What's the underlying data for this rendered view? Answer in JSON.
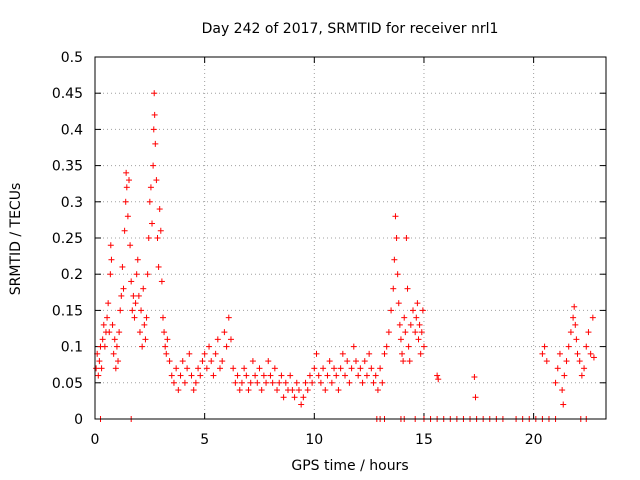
{
  "chart_data": {
    "type": "scatter",
    "title": "Day 242 of 2017, SRMTID for receiver nrl1",
    "xlabel": "GPS time / hours",
    "ylabel": "SRMTID / TECUs",
    "xlim": [
      0,
      23.3
    ],
    "ylim": [
      0,
      0.5
    ],
    "xticks": [
      0,
      5,
      10,
      15,
      20
    ],
    "yticks": [
      0,
      0.05,
      0.1,
      0.15,
      0.2,
      0.25,
      0.3,
      0.35,
      0.4,
      0.45,
      0.5
    ],
    "xtick_labels": [
      "0",
      "5",
      "10",
      "15",
      "20"
    ],
    "ytick_labels": [
      "0",
      "0.05",
      "0.1",
      "0.15",
      "0.2",
      "0.25",
      "0.3",
      "0.35",
      "0.4",
      "0.45",
      "0.5"
    ],
    "grid": true,
    "marker": "+",
    "color": "#ff0000",
    "series": [
      {
        "name": "",
        "points": [
          [
            0.05,
            0.07
          ],
          [
            0.1,
            0.09
          ],
          [
            0.15,
            0.06
          ],
          [
            0.2,
            0.08
          ],
          [
            0.25,
            0.1
          ],
          [
            0.3,
            0.07
          ],
          [
            0.35,
            0.11
          ],
          [
            0.4,
            0.13
          ],
          [
            0.45,
            0.1
          ],
          [
            0.5,
            0.12
          ],
          [
            0.55,
            0.14
          ],
          [
            0.6,
            0.16
          ],
          [
            0.65,
            0.12
          ],
          [
            0.7,
            0.2
          ],
          [
            0.72,
            0.24
          ],
          [
            0.75,
            0.22
          ],
          [
            0.8,
            0.13
          ],
          [
            0.85,
            0.09
          ],
          [
            0.9,
            0.11
          ],
          [
            0.95,
            0.07
          ],
          [
            1.0,
            0.1
          ],
          [
            1.05,
            0.08
          ],
          [
            1.1,
            0.12
          ],
          [
            1.15,
            0.15
          ],
          [
            1.2,
            0.17
          ],
          [
            1.25,
            0.21
          ],
          [
            1.3,
            0.18
          ],
          [
            1.35,
            0.26
          ],
          [
            1.4,
            0.3
          ],
          [
            1.42,
            0.34
          ],
          [
            1.45,
            0.32
          ],
          [
            1.5,
            0.28
          ],
          [
            1.55,
            0.33
          ],
          [
            1.6,
            0.24
          ],
          [
            1.65,
            0.19
          ],
          [
            1.7,
            0.15
          ],
          [
            1.75,
            0.17
          ],
          [
            1.8,
            0.14
          ],
          [
            1.85,
            0.16
          ],
          [
            1.9,
            0.2
          ],
          [
            1.95,
            0.22
          ],
          [
            2.0,
            0.17
          ],
          [
            2.05,
            0.12
          ],
          [
            2.1,
            0.15
          ],
          [
            2.15,
            0.1
          ],
          [
            2.2,
            0.18
          ],
          [
            2.25,
            0.13
          ],
          [
            2.3,
            0.11
          ],
          [
            2.35,
            0.14
          ],
          [
            2.4,
            0.2
          ],
          [
            2.45,
            0.25
          ],
          [
            2.5,
            0.3
          ],
          [
            2.55,
            0.32
          ],
          [
            2.6,
            0.27
          ],
          [
            2.65,
            0.35
          ],
          [
            2.68,
            0.4
          ],
          [
            2.7,
            0.45
          ],
          [
            2.72,
            0.42
          ],
          [
            2.75,
            0.38
          ],
          [
            2.8,
            0.33
          ],
          [
            2.85,
            0.25
          ],
          [
            2.9,
            0.21
          ],
          [
            2.95,
            0.29
          ],
          [
            3.0,
            0.26
          ],
          [
            3.05,
            0.19
          ],
          [
            3.1,
            0.14
          ],
          [
            3.15,
            0.12
          ],
          [
            3.2,
            0.1
          ],
          [
            3.25,
            0.09
          ],
          [
            3.3,
            0.11
          ],
          [
            3.4,
            0.08
          ],
          [
            3.5,
            0.06
          ],
          [
            3.6,
            0.05
          ],
          [
            3.7,
            0.07
          ],
          [
            3.8,
            0.04
          ],
          [
            3.9,
            0.06
          ],
          [
            4.0,
            0.08
          ],
          [
            4.1,
            0.05
          ],
          [
            4.2,
            0.07
          ],
          [
            4.3,
            0.09
          ],
          [
            4.4,
            0.06
          ],
          [
            4.5,
            0.04
          ],
          [
            4.6,
            0.05
          ],
          [
            4.7,
            0.07
          ],
          [
            4.8,
            0.06
          ],
          [
            4.9,
            0.08
          ],
          [
            5.0,
            0.09
          ],
          [
            5.1,
            0.07
          ],
          [
            5.2,
            0.1
          ],
          [
            5.3,
            0.08
          ],
          [
            5.4,
            0.06
          ],
          [
            5.5,
            0.09
          ],
          [
            5.6,
            0.11
          ],
          [
            5.7,
            0.07
          ],
          [
            5.8,
            0.08
          ],
          [
            5.9,
            0.12
          ],
          [
            6.0,
            0.1
          ],
          [
            6.1,
            0.14
          ],
          [
            6.2,
            0.11
          ],
          [
            6.3,
            0.07
          ],
          [
            6.4,
            0.05
          ],
          [
            6.5,
            0.06
          ],
          [
            6.6,
            0.04
          ],
          [
            6.7,
            0.05
          ],
          [
            6.8,
            0.07
          ],
          [
            6.9,
            0.06
          ],
          [
            7.0,
            0.04
          ],
          [
            7.1,
            0.05
          ],
          [
            7.2,
            0.08
          ],
          [
            7.3,
            0.06
          ],
          [
            7.4,
            0.05
          ],
          [
            7.5,
            0.07
          ],
          [
            7.6,
            0.04
          ],
          [
            7.7,
            0.06
          ],
          [
            7.8,
            0.05
          ],
          [
            7.9,
            0.08
          ],
          [
            8.0,
            0.06
          ],
          [
            8.1,
            0.05
          ],
          [
            8.2,
            0.07
          ],
          [
            8.3,
            0.04
          ],
          [
            8.4,
            0.05
          ],
          [
            8.5,
            0.06
          ],
          [
            8.6,
            0.03
          ],
          [
            8.7,
            0.05
          ],
          [
            8.8,
            0.04
          ],
          [
            8.9,
            0.06
          ],
          [
            9.0,
            0.04
          ],
          [
            9.1,
            0.03
          ],
          [
            9.2,
            0.05
          ],
          [
            9.3,
            0.04
          ],
          [
            9.4,
            0.02
          ],
          [
            9.5,
            0.03
          ],
          [
            9.6,
            0.05
          ],
          [
            9.7,
            0.04
          ],
          [
            9.8,
            0.06
          ],
          [
            9.9,
            0.05
          ],
          [
            10.0,
            0.07
          ],
          [
            10.1,
            0.09
          ],
          [
            10.2,
            0.06
          ],
          [
            10.3,
            0.05
          ],
          [
            10.4,
            0.07
          ],
          [
            10.5,
            0.04
          ],
          [
            10.6,
            0.06
          ],
          [
            10.7,
            0.08
          ],
          [
            10.8,
            0.05
          ],
          [
            10.9,
            0.07
          ],
          [
            11.0,
            0.06
          ],
          [
            11.1,
            0.04
          ],
          [
            11.2,
            0.07
          ],
          [
            11.3,
            0.09
          ],
          [
            11.4,
            0.06
          ],
          [
            11.5,
            0.08
          ],
          [
            11.6,
            0.05
          ],
          [
            11.7,
            0.07
          ],
          [
            11.8,
            0.1
          ],
          [
            11.9,
            0.08
          ],
          [
            12.0,
            0.06
          ],
          [
            12.1,
            0.07
          ],
          [
            12.2,
            0.05
          ],
          [
            12.3,
            0.08
          ],
          [
            12.4,
            0.06
          ],
          [
            12.5,
            0.09
          ],
          [
            12.6,
            0.07
          ],
          [
            12.7,
            0.05
          ],
          [
            12.8,
            0.06
          ],
          [
            12.9,
            0.04
          ],
          [
            13.0,
            0.07
          ],
          [
            13.1,
            0.05
          ],
          [
            13.2,
            0.09
          ],
          [
            13.3,
            0.1
          ],
          [
            13.4,
            0.12
          ],
          [
            13.5,
            0.15
          ],
          [
            13.6,
            0.18
          ],
          [
            13.65,
            0.22
          ],
          [
            13.7,
            0.28
          ],
          [
            13.75,
            0.25
          ],
          [
            13.8,
            0.2
          ],
          [
            13.85,
            0.16
          ],
          [
            13.9,
            0.13
          ],
          [
            13.95,
            0.11
          ],
          [
            14.0,
            0.09
          ],
          [
            14.05,
            0.08
          ],
          [
            14.1,
            0.14
          ],
          [
            14.15,
            0.12
          ],
          [
            14.2,
            0.25
          ],
          [
            14.25,
            0.18
          ],
          [
            14.3,
            0.1
          ],
          [
            14.35,
            0.08
          ],
          [
            14.4,
            0.13
          ],
          [
            14.5,
            0.15
          ],
          [
            14.6,
            0.12
          ],
          [
            14.65,
            0.14
          ],
          [
            14.7,
            0.16
          ],
          [
            14.75,
            0.11
          ],
          [
            14.8,
            0.13
          ],
          [
            14.85,
            0.09
          ],
          [
            14.9,
            0.12
          ],
          [
            14.95,
            0.15
          ],
          [
            15.0,
            0.1
          ],
          [
            15.6,
            0.06
          ],
          [
            15.65,
            0.055
          ],
          [
            17.3,
            0.058
          ],
          [
            17.35,
            0.03
          ],
          [
            20.4,
            0.09
          ],
          [
            20.5,
            0.1
          ],
          [
            20.6,
            0.08
          ],
          [
            21.0,
            0.05
          ],
          [
            21.1,
            0.07
          ],
          [
            21.2,
            0.09
          ],
          [
            21.3,
            0.04
          ],
          [
            21.35,
            0.02
          ],
          [
            21.4,
            0.06
          ],
          [
            21.5,
            0.08
          ],
          [
            21.6,
            0.1
          ],
          [
            21.7,
            0.12
          ],
          [
            21.8,
            0.14
          ],
          [
            21.85,
            0.155
          ],
          [
            21.9,
            0.13
          ],
          [
            21.95,
            0.11
          ],
          [
            22.0,
            0.09
          ],
          [
            22.1,
            0.08
          ],
          [
            22.2,
            0.06
          ],
          [
            22.3,
            0.07
          ],
          [
            22.4,
            0.1
          ],
          [
            22.5,
            0.12
          ],
          [
            22.6,
            0.09
          ],
          [
            22.7,
            0.14
          ],
          [
            22.75,
            0.085
          ],
          [
            0.25,
            0.0
          ],
          [
            1.65,
            0.0
          ],
          [
            12.85,
            0.0
          ],
          [
            13.0,
            0.0
          ],
          [
            13.2,
            0.0
          ],
          [
            13.95,
            0.0
          ],
          [
            14.1,
            0.0
          ],
          [
            14.6,
            0.0
          ],
          [
            15.0,
            0.0
          ],
          [
            15.3,
            0.0
          ],
          [
            15.6,
            0.0
          ],
          [
            15.9,
            0.0
          ],
          [
            16.2,
            0.0
          ],
          [
            16.5,
            0.0
          ],
          [
            16.8,
            0.0
          ],
          [
            17.1,
            0.0
          ],
          [
            17.4,
            0.0
          ],
          [
            17.7,
            0.0
          ],
          [
            18.0,
            0.0
          ],
          [
            18.3,
            0.0
          ],
          [
            18.6,
            0.0
          ],
          [
            19.2,
            0.0
          ],
          [
            19.5,
            0.0
          ],
          [
            19.8,
            0.0
          ],
          [
            20.1,
            0.0
          ],
          [
            20.4,
            0.0
          ],
          [
            20.7,
            0.0
          ],
          [
            21.0,
            0.0
          ],
          [
            22.15,
            0.0
          ],
          [
            22.4,
            0.0
          ]
        ]
      }
    ]
  }
}
